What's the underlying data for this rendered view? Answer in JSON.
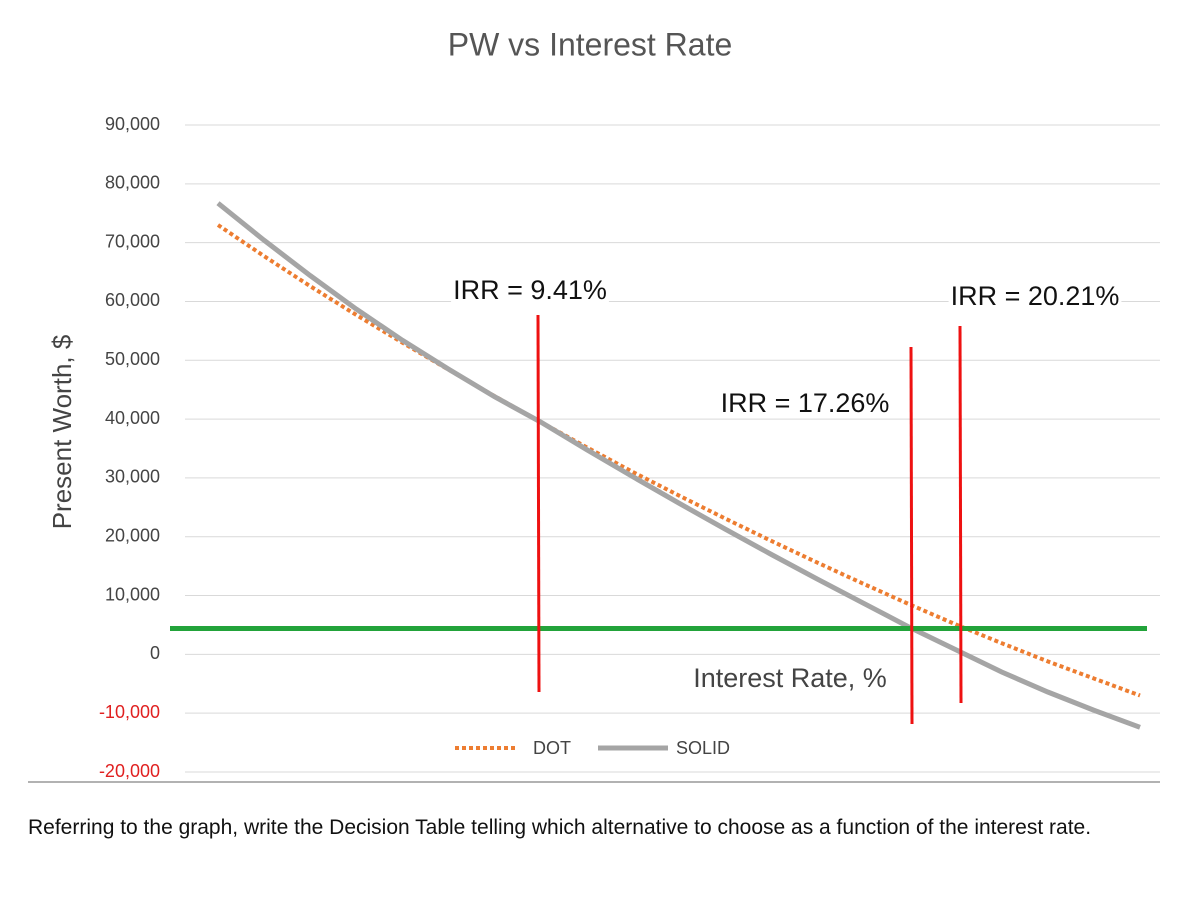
{
  "chart_data": {
    "type": "line",
    "title": "PW vs Interest Rate",
    "x_label": "Interest Rate, %",
    "y_label": "Present Worth, $",
    "categories": [
      null,
      null,
      null,
      null,
      null,
      null,
      null,
      null,
      null,
      null,
      null,
      null,
      null,
      null,
      null,
      null,
      null,
      null,
      null,
      null,
      null
    ],
    "series": [
      {
        "name": "DOT",
        "color": "#ed7d31",
        "style": "dotted",
        "values": [
          73000,
          67700,
          62600,
          57700,
          53000,
          48400,
          43900,
          39500,
          35200,
          31000,
          27000,
          23100,
          19300,
          15600,
          12000,
          8500,
          5100,
          1900,
          -1200,
          -4100,
          -7000
        ]
      },
      {
        "name": "SOLID",
        "color": "#a5a5a5",
        "style": "solid",
        "values": [
          76700,
          70400,
          64400,
          58700,
          53400,
          48500,
          43800,
          39500,
          34800,
          30200,
          25700,
          21300,
          17000,
          12800,
          8700,
          4600,
          800,
          -3000,
          -6400,
          -9500,
          -12400
        ]
      }
    ],
    "ylim": [
      -20000,
      90000
    ],
    "yticks": [
      {
        "value": 90000,
        "label": "90,000"
      },
      {
        "value": 80000,
        "label": "80,000"
      },
      {
        "value": 70000,
        "label": "70,000"
      },
      {
        "value": 60000,
        "label": "60,000"
      },
      {
        "value": 50000,
        "label": "50,000"
      },
      {
        "value": 40000,
        "label": "40,000"
      },
      {
        "value": 30000,
        "label": "30,000"
      },
      {
        "value": 20000,
        "label": "20,000"
      },
      {
        "value": 10000,
        "label": "10,000"
      },
      0,
      {
        "value": -10000,
        "label": "-10,000"
      },
      {
        "value": -20000,
        "label": "-20,000"
      }
    ],
    "negative_tick_color": "#e02020",
    "grid": true,
    "reference_line": {
      "value": 4400,
      "color": "#22a33a"
    },
    "annotations": [
      "IRR = 9.41%",
      "IRR = 17.26%",
      "IRR = 20.21%"
    ],
    "annotation_line_color": "#ee1111"
  },
  "question": "Referring to the graph, write the Decision Table telling which alternative to choose as a function of the interest rate."
}
